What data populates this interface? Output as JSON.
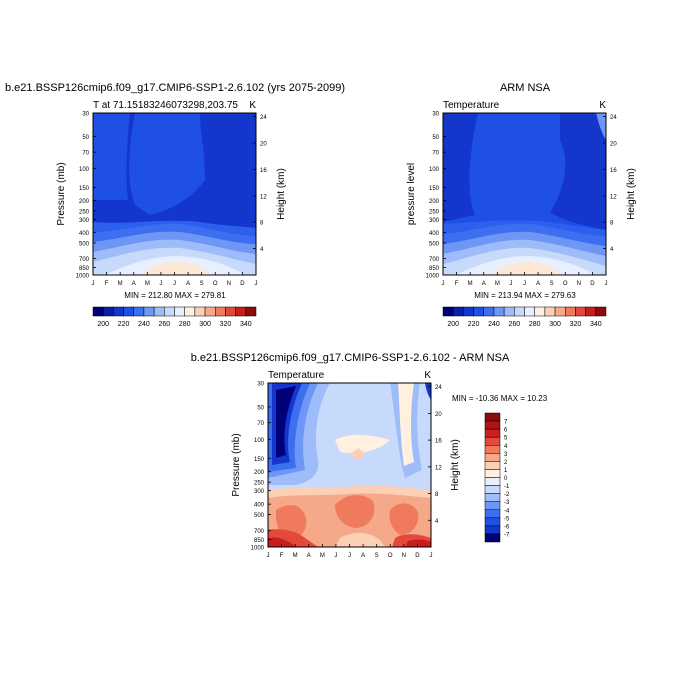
{
  "chart_data": [
    {
      "type": "heatmap",
      "title": "b.e21.BSSP126cmip6.f09_g17.CMIP6-SSP1-2.6.102 (yrs 2075-2099)",
      "left_label": "T at 71.15183246073298,203.75",
      "right_label": "K",
      "ylabel": "Pressure (mb)",
      "ylabel_right": "Height (km)",
      "min_max": "MIN = 212.80 MAX = 279.81",
      "months": [
        "J",
        "F",
        "M",
        "A",
        "M",
        "J",
        "J",
        "A",
        "S",
        "O",
        "N",
        "D",
        "J"
      ],
      "pressure_ticks": [
        30,
        50,
        70,
        100,
        150,
        200,
        250,
        300,
        400,
        500,
        700,
        850,
        1000
      ],
      "height_ticks": [
        4,
        8,
        12,
        16,
        20,
        24
      ],
      "colorbar": {
        "labels": [
          "200",
          "220",
          "240",
          "260",
          "280",
          "300",
          "320",
          "340"
        ],
        "colors": [
          "#00007a",
          "#0a1fa6",
          "#1436cc",
          "#1e50e6",
          "#3c6ef0",
          "#6e96f5",
          "#9dbcf9",
          "#c8dafc",
          "#e8f0ff",
          "#fff0e0",
          "#fbd0b5",
          "#f6a98a",
          "#ef7a5c",
          "#e3483a",
          "#c61e1e",
          "#8f0a0a"
        ]
      }
    },
    {
      "type": "heatmap",
      "title": "ARM NSA",
      "left_label": "Temperature",
      "right_label": "K",
      "ylabel": "pressure level",
      "ylabel_right": "Height (km)",
      "min_max": "MIN = 213.94 MAX = 279.63",
      "months": [
        "J",
        "F",
        "M",
        "A",
        "M",
        "J",
        "J",
        "A",
        "S",
        "O",
        "N",
        "D",
        "J"
      ],
      "pressure_ticks": [
        30,
        50,
        70,
        100,
        150,
        200,
        250,
        300,
        400,
        500,
        700,
        850,
        1000
      ],
      "height_ticks": [
        4,
        8,
        12,
        16,
        20,
        24
      ],
      "colorbar": {
        "labels": [
          "200",
          "220",
          "240",
          "260",
          "280",
          "300",
          "320",
          "340"
        ],
        "colors": [
          "#00007a",
          "#0a1fa6",
          "#1436cc",
          "#1e50e6",
          "#3c6ef0",
          "#6e96f5",
          "#9dbcf9",
          "#c8dafc",
          "#e8f0ff",
          "#fff0e0",
          "#fbd0b5",
          "#f6a98a",
          "#ef7a5c",
          "#e3483a",
          "#c61e1e",
          "#8f0a0a"
        ]
      }
    },
    {
      "type": "heatmap",
      "title": "b.e21.BSSP126cmip6.f09_g17.CMIP6-SSP1-2.6.102 - ARM NSA",
      "left_label": "Temperature",
      "right_label": "K",
      "ylabel": "Pressure (mb)",
      "ylabel_right": "Height (km)",
      "min_max": "MIN = -10.36 MAX =  10.23",
      "months": [
        "J",
        "F",
        "M",
        "A",
        "M",
        "J",
        "J",
        "A",
        "S",
        "O",
        "N",
        "D",
        "J"
      ],
      "pressure_ticks": [
        30,
        50,
        70,
        100,
        150,
        200,
        250,
        300,
        400,
        500,
        700,
        850,
        1000
      ],
      "height_ticks": [
        4,
        8,
        12,
        16,
        20,
        24
      ],
      "colorbar": {
        "labels": [
          "7",
          "6",
          "5",
          "4",
          "3",
          "2",
          "1",
          "0",
          "-1",
          "-2",
          "-3",
          "-4",
          "-5",
          "-6",
          "-7"
        ],
        "colors": [
          "#8f0a0a",
          "#b01414",
          "#cc2020",
          "#e3483a",
          "#ef7a5c",
          "#f6a98a",
          "#fbd0b5",
          "#fff0e0",
          "#e8f0ff",
          "#c8dafc",
          "#9dbcf9",
          "#6e96f5",
          "#3c6ef0",
          "#1e50e6",
          "#1436cc",
          "#00007a"
        ]
      }
    }
  ]
}
